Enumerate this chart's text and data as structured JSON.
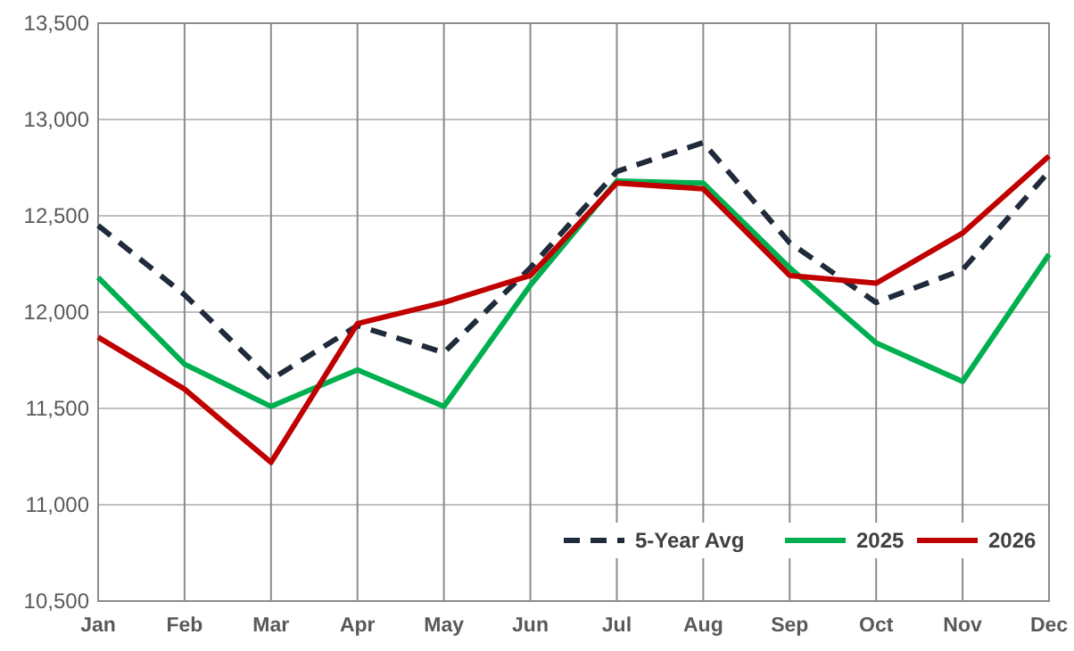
{
  "chart_data": {
    "type": "line",
    "categories": [
      "Jan",
      "Feb",
      "Mar",
      "Apr",
      "May",
      "Jun",
      "Jul",
      "Aug",
      "Sep",
      "Oct",
      "Nov",
      "Dec"
    ],
    "series": [
      {
        "name": "5-Year Avg",
        "color": "#1f2a3a",
        "line_style": "dashed",
        "values": [
          12450,
          12090,
          11650,
          11930,
          11790,
          12230,
          12730,
          12880,
          12360,
          12050,
          12220,
          12730
        ]
      },
      {
        "name": "2025",
        "color": "#00b050",
        "values": [
          12180,
          11730,
          11510,
          11700,
          11510,
          12140,
          12680,
          12670,
          12230,
          11840,
          11640,
          12300
        ]
      },
      {
        "name": "2026",
        "color": "#c00000",
        "values": [
          11870,
          11600,
          11220,
          11940,
          12050,
          12190,
          12670,
          12640,
          12190,
          12150,
          12410,
          12810
        ]
      }
    ],
    "ylim": [
      10500,
      13500
    ],
    "yticks": [
      {
        "value": 10500,
        "label": "10,500"
      },
      {
        "value": 11000,
        "label": "11,000"
      },
      {
        "value": 11500,
        "label": "11,500"
      },
      {
        "value": 12000,
        "label": "12,000"
      },
      {
        "value": 12500,
        "label": "12,500"
      },
      {
        "value": 13000,
        "label": "13,000"
      },
      {
        "value": 13500,
        "label": "13,500"
      }
    ],
    "grid": true,
    "legend": "bottom right"
  }
}
